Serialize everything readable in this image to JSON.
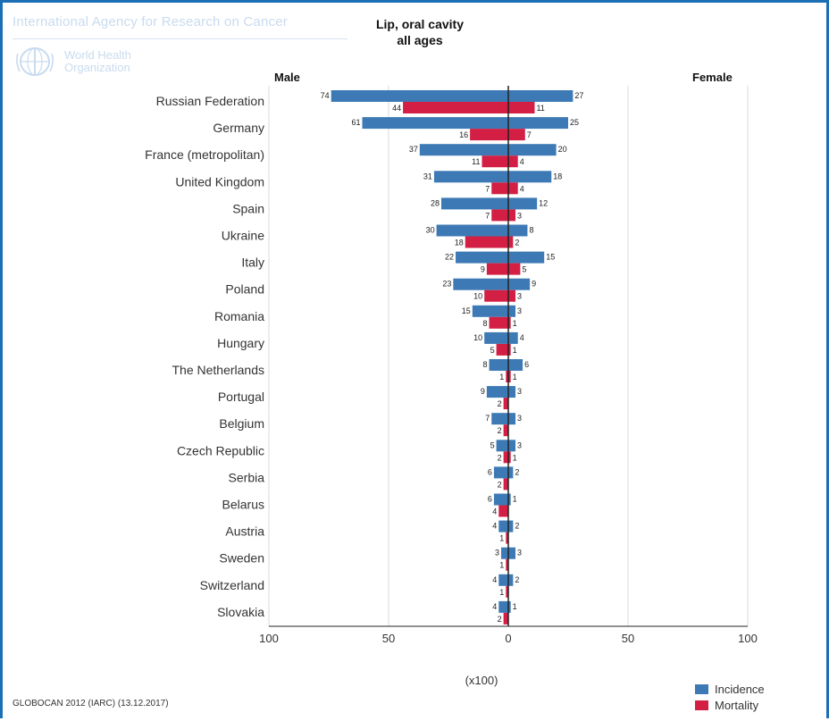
{
  "header": {
    "agency": "International Agency for Research on Cancer",
    "who_line1": "World Health",
    "who_line2": "Organization",
    "title_line1": "Lip, oral cavity",
    "title_line2": "all ages"
  },
  "footer": {
    "source": "GLOBOCAN 2012 (IARC) (13.12.2017)"
  },
  "colors": {
    "incidence": "#3d7ab5",
    "mortality": "#d21f43",
    "grid": "#d9d9d9",
    "axis": "#222222",
    "frame": "#1c6fb5"
  },
  "chart_data": {
    "type": "bar",
    "layout": "butterfly",
    "title": "Lip, oral cavity all ages",
    "left_label": "Male",
    "right_label": "Female",
    "xlabel": "(x100)",
    "ticks": [
      "100",
      "50",
      "0",
      "50",
      "100"
    ],
    "xlim": [
      -100,
      100
    ],
    "legend": [
      {
        "name": "Incidence",
        "color": "#3d7ab5"
      },
      {
        "name": "Mortality",
        "color": "#d21f43"
      }
    ],
    "legend_position": "bottom-right",
    "categories": [
      "Russian Federation",
      "Germany",
      "France (metropolitan)",
      "United Kingdom",
      "Spain",
      "Ukraine",
      "Italy",
      "Poland",
      "Romania",
      "Hungary",
      "The Netherlands",
      "Portugal",
      "Belgium",
      "Czech Republic",
      "Serbia",
      "Belarus",
      "Austria",
      "Sweden",
      "Switzerland",
      "Slovakia"
    ],
    "series": [
      {
        "name": "Incidence",
        "sex": "Male",
        "values": [
          74,
          61,
          37,
          31,
          28,
          30,
          22,
          23,
          15,
          10,
          8,
          9,
          7,
          5,
          6,
          6,
          4,
          3,
          4,
          4
        ]
      },
      {
        "name": "Mortality",
        "sex": "Male",
        "values": [
          44,
          16,
          11,
          7,
          7,
          18,
          9,
          10,
          8,
          5,
          1,
          2,
          2,
          2,
          2,
          4,
          1,
          1,
          1,
          2
        ]
      },
      {
        "name": "Incidence",
        "sex": "Female",
        "values": [
          27,
          25,
          20,
          18,
          12,
          8,
          15,
          9,
          3,
          4,
          6,
          3,
          3,
          3,
          2,
          1,
          2,
          3,
          2,
          1
        ]
      },
      {
        "name": "Mortality",
        "sex": "Female",
        "values": [
          11,
          7,
          4,
          4,
          3,
          2,
          5,
          3,
          1,
          1,
          1,
          0,
          0,
          1,
          0,
          0,
          0,
          0,
          0,
          0
        ]
      }
    ]
  }
}
